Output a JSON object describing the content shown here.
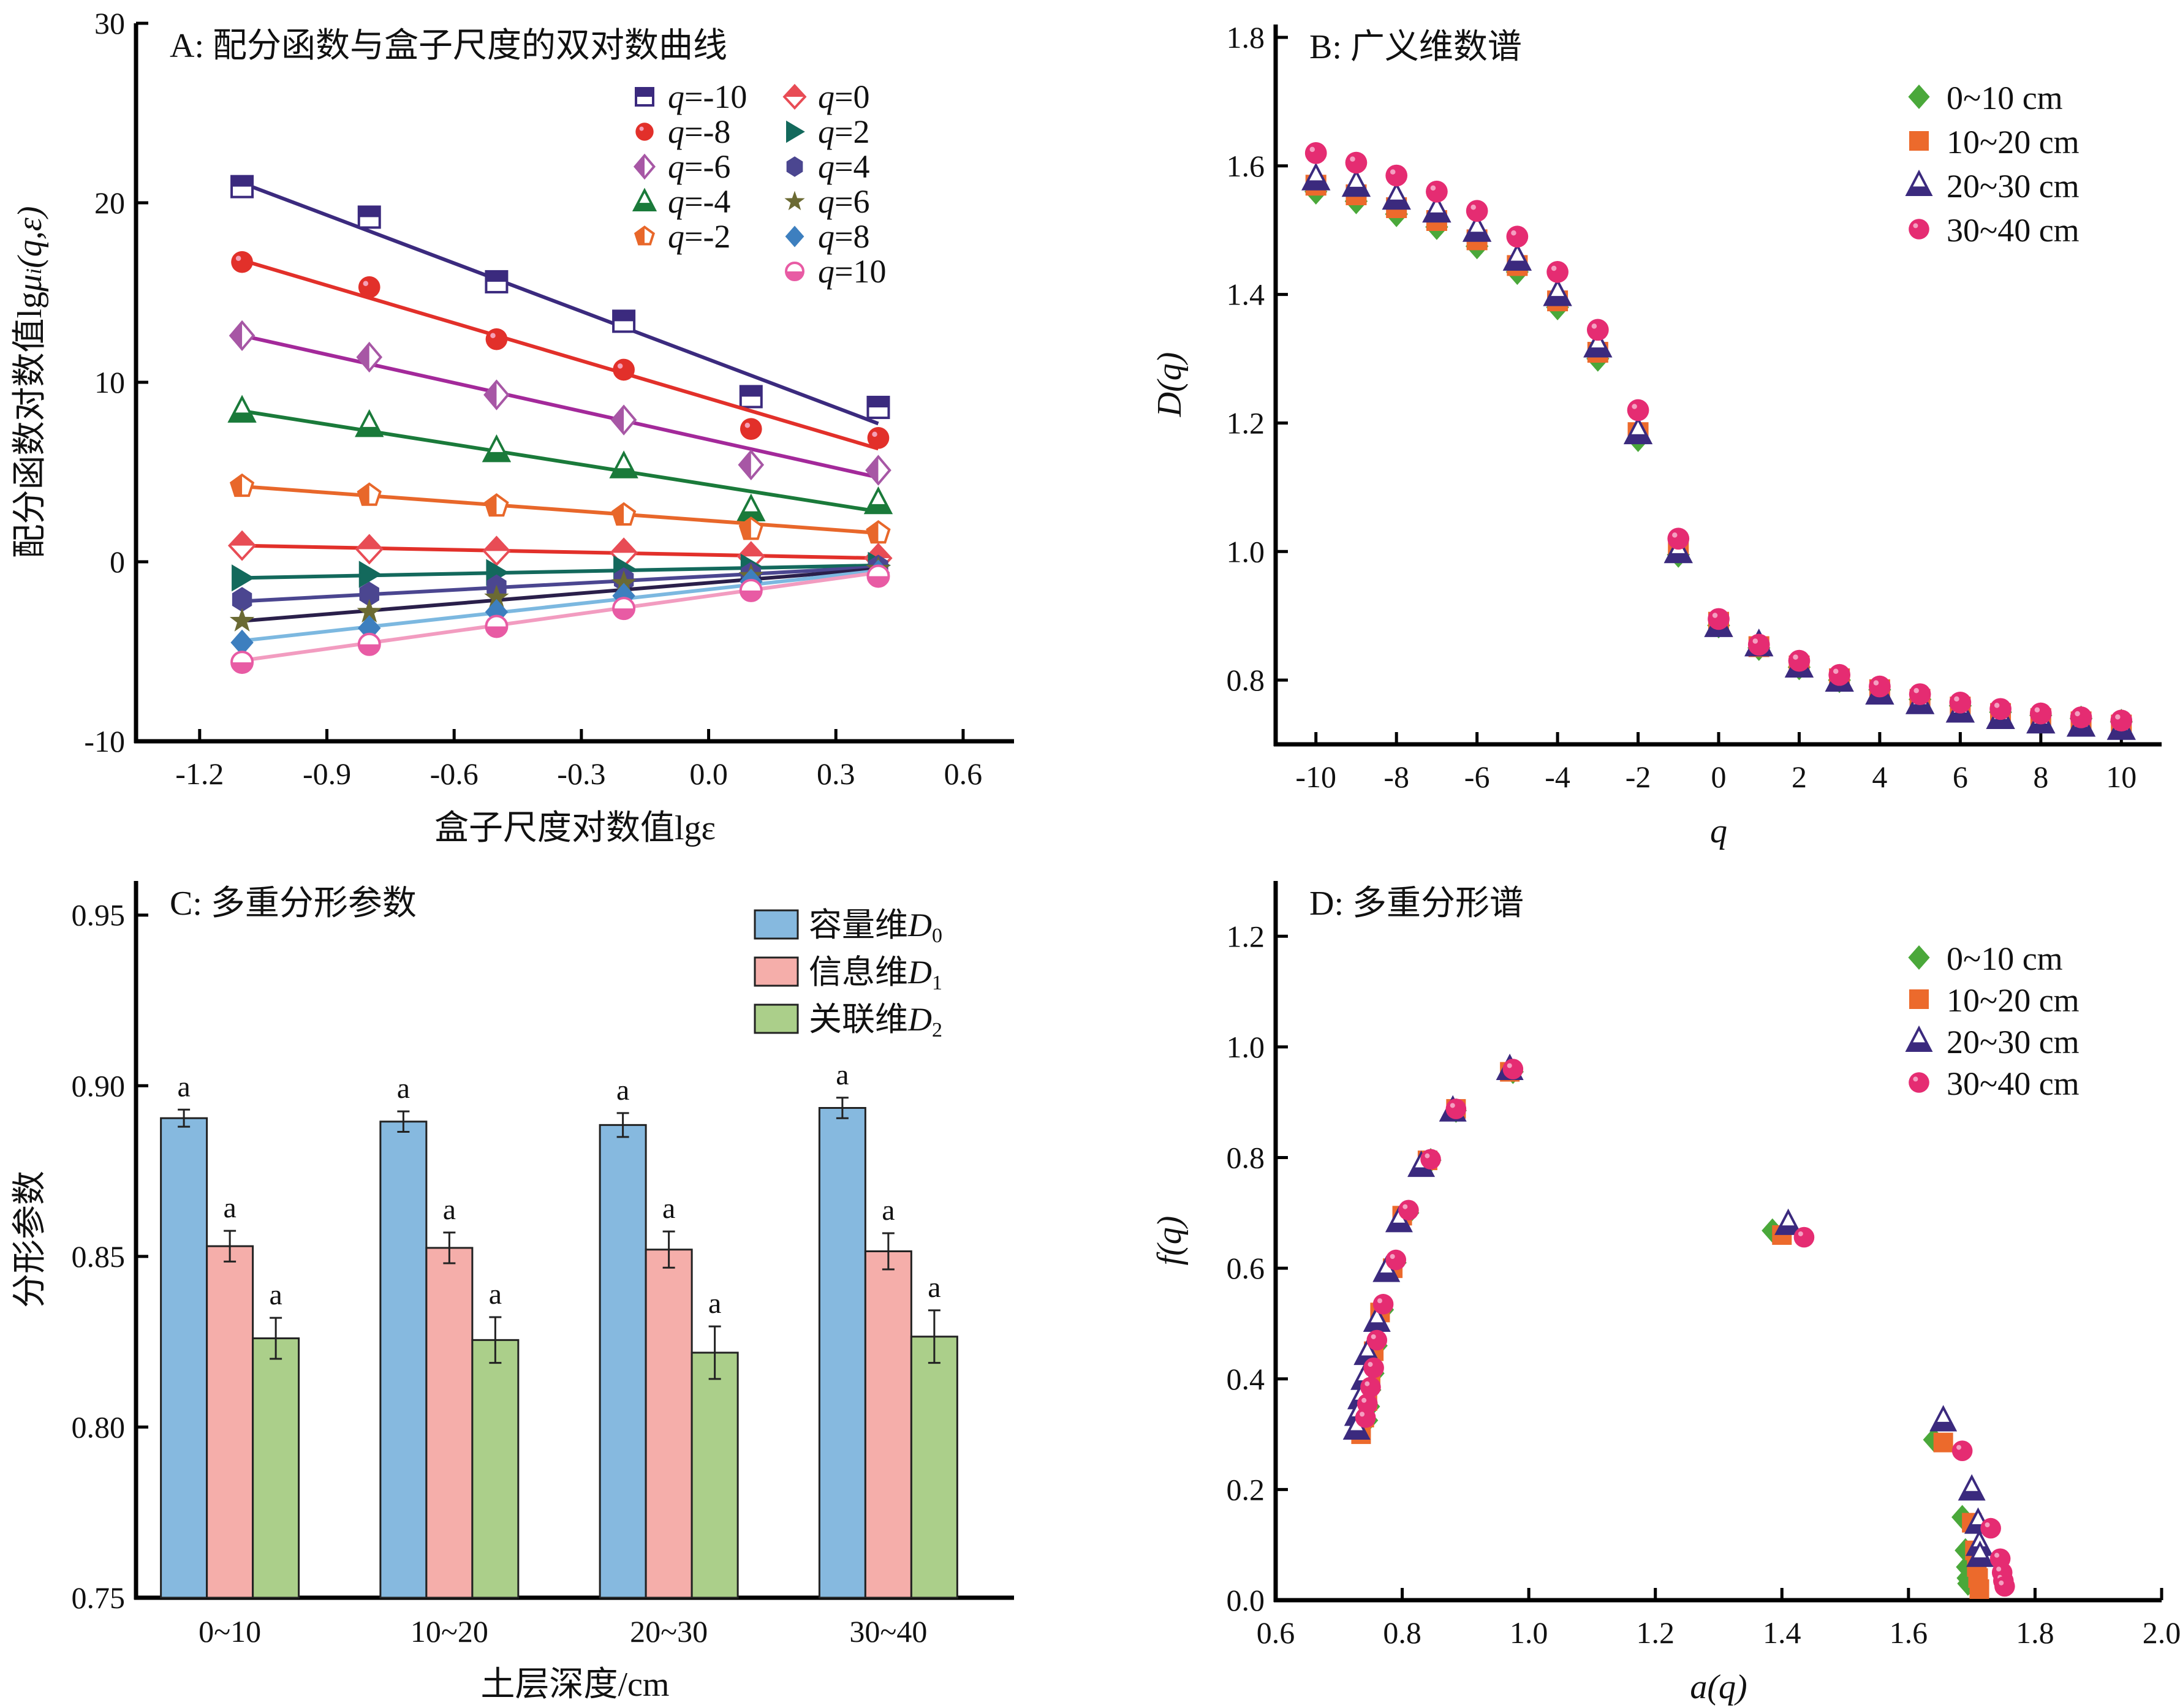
{
  "chart_data": [
    {
      "id": "A",
      "type": "scatter",
      "title": "A: 配分函数与盒子尺度的双对数曲线",
      "xlabel": "盒子尺度对数值lgε",
      "ylabel": "配分函数对数值lgμi(q,ε)",
      "xlim": [
        -1.35,
        0.72
      ],
      "ylim": [
        -10,
        30
      ],
      "xticks": [
        -1.2,
        -0.9,
        -0.6,
        -0.3,
        0.0,
        0.3,
        0.6
      ],
      "xtick_labels": [
        "-1.2",
        "-0.9",
        "-0.6",
        "-0.3",
        "0.0",
        "0.3",
        "0.6"
      ],
      "yticks": [
        -10,
        0,
        10,
        20,
        30
      ],
      "ytick_labels": [
        "-10",
        "0",
        "10",
        "20",
        "30"
      ],
      "legend_position": "top-right",
      "x": [
        -1.1,
        -0.8,
        -0.5,
        -0.2,
        0.1,
        0.4
      ],
      "series": [
        {
          "name": "q=-10",
          "marker": "square-half",
          "color": "#3b2a7e",
          "values": [
            20.9,
            19.2,
            15.6,
            13.4,
            9.2,
            8.6
          ],
          "fit": [
            21.1,
            7.7
          ]
        },
        {
          "name": "q=-8",
          "marker": "circle",
          "color": "#e2302a",
          "values": [
            16.7,
            15.3,
            12.4,
            10.7,
            7.4,
            6.9
          ],
          "fit": [
            16.8,
            6.3
          ]
        },
        {
          "name": "q=-6",
          "marker": "diamond-half",
          "color": "#a757a5",
          "values": [
            12.6,
            11.4,
            9.3,
            7.9,
            5.4,
            5.1
          ],
          "fit": [
            12.6,
            4.7
          ]
        },
        {
          "name": "q=-4",
          "marker": "triangle-half",
          "color": "#1a7a3a",
          "values": [
            8.4,
            7.6,
            6.2,
            5.3,
            2.9,
            3.3
          ],
          "fit": [
            8.4,
            2.8
          ]
        },
        {
          "name": "q=-2",
          "marker": "pentagon-half",
          "color": "#e8672a",
          "values": [
            4.2,
            3.7,
            3.1,
            2.6,
            1.8,
            1.6
          ],
          "fit": [
            4.2,
            1.6
          ]
        },
        {
          "name": "q=0",
          "marker": "diamond-top",
          "color": "#e84c55",
          "values": [
            0.9,
            0.7,
            0.6,
            0.5,
            0.3,
            0.2
          ],
          "fit": [
            0.9,
            0.2
          ]
        },
        {
          "name": "q=2",
          "marker": "triangle-right",
          "color": "#13695c",
          "values": [
            -0.9,
            -0.7,
            -0.6,
            -0.4,
            -0.3,
            -0.2
          ],
          "fit": [
            -0.9,
            -0.2
          ]
        },
        {
          "name": "q=4",
          "marker": "hexagon",
          "color": "#4b4690",
          "values": [
            -2.1,
            -1.8,
            -1.4,
            -1.0,
            -0.7,
            -0.3
          ],
          "fit": [
            -2.2,
            -0.3
          ]
        },
        {
          "name": "q=6",
          "marker": "star",
          "color": "#6b6a33",
          "values": [
            -3.3,
            -2.8,
            -2.0,
            -1.2,
            -0.8,
            -0.4
          ],
          "fit": [
            -3.3,
            -0.4
          ]
        },
        {
          "name": "q=8",
          "marker": "diamond",
          "color": "#3d7fbf",
          "values": [
            -4.5,
            -3.7,
            -2.8,
            -1.9,
            -1.1,
            -0.6
          ],
          "fit": [
            -4.4,
            -0.5
          ]
        },
        {
          "name": "q=10",
          "marker": "circle-half",
          "color": "#e85ba4",
          "values": [
            -5.6,
            -4.6,
            -3.6,
            -2.6,
            -1.6,
            -0.8
          ],
          "fit": [
            -5.5,
            -0.6
          ]
        }
      ],
      "fit_line_colors": [
        "#3b2a7e",
        "#e2302a",
        "#a3299a",
        "#1a7a3a",
        "#e8672a",
        "#e2302a",
        "#13695c",
        "#4b4690",
        "#2a1f4a",
        "#7cb8e0",
        "#f29cc0"
      ]
    },
    {
      "id": "B",
      "type": "scatter",
      "title": "B: 广义维数谱",
      "xlabel": "q",
      "ylabel": "D(q)",
      "xlim": [
        -11,
        11
      ],
      "ylim": [
        0.7,
        1.82
      ],
      "xticks": [
        -10,
        -8,
        -6,
        -4,
        -2,
        0,
        2,
        4,
        6,
        8,
        10
      ],
      "xtick_labels": [
        "-10",
        "-8",
        "-6",
        "-4",
        "-2",
        "0",
        "2",
        "4",
        "6",
        "8",
        "10"
      ],
      "yticks": [
        0.8,
        1.0,
        1.2,
        1.4,
        1.6,
        1.8
      ],
      "ytick_labels": [
        "0.8",
        "1.0",
        "1.2",
        "1.4",
        "1.6",
        "1.8"
      ],
      "legend_position": "top-right",
      "x": [
        -10,
        -9,
        -8,
        -7,
        -6,
        -5,
        -4,
        -3,
        -2,
        -1,
        0,
        1,
        2,
        3,
        4,
        5,
        6,
        7,
        8,
        9,
        10
      ],
      "series": [
        {
          "name": "0~10 cm",
          "marker": "diamond",
          "color": "#4aa83a",
          "values": [
            1.56,
            1.545,
            1.525,
            1.505,
            1.475,
            1.435,
            1.38,
            1.3,
            1.175,
            0.995,
            0.885,
            0.85,
            0.82,
            0.8,
            0.785,
            0.77,
            0.76,
            0.75,
            0.745,
            0.74,
            0.735
          ]
        },
        {
          "name": "10~20 cm",
          "marker": "square",
          "color": "#ec6a2c",
          "values": [
            1.57,
            1.555,
            1.535,
            1.515,
            1.485,
            1.445,
            1.39,
            1.31,
            1.185,
            1.005,
            0.89,
            0.852,
            0.822,
            0.802,
            0.785,
            0.77,
            0.758,
            0.748,
            0.74,
            0.735,
            0.73
          ]
        },
        {
          "name": "20~30 cm",
          "marker": "triangle-half",
          "color": "#3b2a7e",
          "values": [
            1.58,
            1.57,
            1.55,
            1.53,
            1.5,
            1.455,
            1.4,
            1.32,
            1.185,
            1.0,
            0.885,
            0.855,
            0.822,
            0.8,
            0.78,
            0.765,
            0.752,
            0.742,
            0.735,
            0.73,
            0.725
          ]
        },
        {
          "name": "30~40 cm",
          "marker": "ball",
          "color": "#e52c72",
          "values": [
            1.62,
            1.605,
            1.585,
            1.56,
            1.53,
            1.49,
            1.435,
            1.345,
            1.22,
            1.02,
            0.895,
            0.855,
            0.83,
            0.808,
            0.79,
            0.778,
            0.765,
            0.755,
            0.748,
            0.742,
            0.737
          ]
        }
      ]
    },
    {
      "id": "C",
      "type": "bar",
      "title": "C: 多重分形参数",
      "xlabel": "土层深度/cm",
      "ylabel": "分形参数",
      "categories": [
        "0~10",
        "10~20",
        "20~30",
        "30~40"
      ],
      "ylim": [
        0.75,
        0.96
      ],
      "yticks": [
        0.75,
        0.8,
        0.85,
        0.9,
        0.95
      ],
      "ytick_labels": [
        "0.75",
        "0.80",
        "0.85",
        "0.90",
        "0.95"
      ],
      "legend_position": "top-right",
      "series": [
        {
          "name": "容量维",
          "sub": "D",
          "idx": "0",
          "color": "#86b9df",
          "values": [
            0.8905,
            0.8895,
            0.8885,
            0.8935
          ],
          "errors": [
            0.0025,
            0.003,
            0.0035,
            0.003
          ],
          "labels": [
            "a",
            "a",
            "a",
            "a"
          ]
        },
        {
          "name": "信息维",
          "sub": "D",
          "idx": "1",
          "color": "#f5aeaa",
          "values": [
            0.853,
            0.8525,
            0.852,
            0.8515
          ],
          "errors": [
            0.0045,
            0.0045,
            0.0053,
            0.0053
          ],
          "labels": [
            "a",
            "a",
            "a",
            "a"
          ]
        },
        {
          "name": "关联维",
          "sub": "D",
          "idx": "2",
          "color": "#abcf8a",
          "values": [
            0.826,
            0.8255,
            0.8218,
            0.8265
          ],
          "errors": [
            0.006,
            0.0067,
            0.0077,
            0.0077
          ],
          "labels": [
            "a",
            "a",
            "a",
            "a"
          ]
        }
      ]
    },
    {
      "id": "D",
      "type": "scatter",
      "title": "D: 多重分形谱",
      "xlabel": "a(q)",
      "ylabel": "f(q)",
      "xlim": [
        0.6,
        2.0
      ],
      "ylim": [
        0.0,
        1.3
      ],
      "xticks": [
        0.6,
        0.8,
        1.0,
        1.2,
        1.4,
        1.6,
        1.8,
        2.0
      ],
      "xtick_labels": [
        "0.6",
        "0.8",
        "1.0",
        "1.2",
        "1.4",
        "1.6",
        "1.8",
        "2.0"
      ],
      "yticks": [
        0.0,
        0.2,
        0.4,
        0.6,
        0.8,
        1.0,
        1.2
      ],
      "ytick_labels": [
        "0.0",
        "0.2",
        "0.4",
        "0.6",
        "0.8",
        "1.0",
        "1.2"
      ],
      "legend_position": "top-right",
      "series": [
        {
          "name": "0~10 cm",
          "marker": "diamond",
          "color": "#4aa83a",
          "points": [
            [
              0.975,
              0.955
            ],
            [
              0.885,
              0.885
            ],
            [
              0.845,
              0.795
            ],
            [
              0.81,
              0.7
            ],
            [
              0.79,
              0.61
            ],
            [
              0.77,
              0.525
            ],
            [
              0.76,
              0.46
            ],
            [
              0.755,
              0.41
            ],
            [
              0.75,
              0.38
            ],
            [
              0.748,
              0.35
            ],
            [
              0.745,
              0.325
            ],
            [
              1.385,
              0.668
            ],
            [
              1.64,
              0.29
            ],
            [
              1.685,
              0.15
            ],
            [
              1.69,
              0.09
            ],
            [
              1.692,
              0.06
            ],
            [
              1.693,
              0.04
            ],
            [
              1.694,
              0.03
            ]
          ]
        },
        {
          "name": "10~20 cm",
          "marker": "square",
          "color": "#ec6a2c",
          "points": [
            [
              0.97,
              0.955
            ],
            [
              0.885,
              0.888
            ],
            [
              0.84,
              0.795
            ],
            [
              0.8,
              0.695
            ],
            [
              0.785,
              0.6
            ],
            [
              0.765,
              0.52
            ],
            [
              0.755,
              0.45
            ],
            [
              0.75,
              0.4
            ],
            [
              0.745,
              0.36
            ],
            [
              0.74,
              0.33
            ],
            [
              0.735,
              0.3
            ],
            [
              1.4,
              0.66
            ],
            [
              1.655,
              0.285
            ],
            [
              1.7,
              0.14
            ],
            [
              1.705,
              0.09
            ],
            [
              1.708,
              0.06
            ],
            [
              1.71,
              0.04
            ],
            [
              1.712,
              0.02
            ]
          ]
        },
        {
          "name": "20~30 cm",
          "marker": "triangle-half",
          "color": "#3b2a7e",
          "points": [
            [
              0.97,
              0.96
            ],
            [
              0.88,
              0.885
            ],
            [
              0.83,
              0.785
            ],
            [
              0.795,
              0.685
            ],
            [
              0.775,
              0.595
            ],
            [
              0.76,
              0.505
            ],
            [
              0.745,
              0.445
            ],
            [
              0.74,
              0.4
            ],
            [
              0.735,
              0.365
            ],
            [
              0.73,
              0.335
            ],
            [
              0.728,
              0.31
            ],
            [
              1.41,
              0.68
            ],
            [
              1.655,
              0.325
            ],
            [
              1.7,
              0.2
            ],
            [
              1.71,
              0.14
            ],
            [
              1.712,
              0.1
            ],
            [
              1.713,
              0.08
            ]
          ]
        },
        {
          "name": "30~40 cm",
          "marker": "ball",
          "color": "#e52c72",
          "points": [
            [
              0.975,
              0.96
            ],
            [
              0.885,
              0.888
            ],
            [
              0.845,
              0.797
            ],
            [
              0.81,
              0.705
            ],
            [
              0.79,
              0.615
            ],
            [
              0.77,
              0.535
            ],
            [
              0.76,
              0.47
            ],
            [
              0.755,
              0.42
            ],
            [
              0.75,
              0.385
            ],
            [
              0.745,
              0.355
            ],
            [
              0.742,
              0.33
            ],
            [
              1.435,
              0.656
            ],
            [
              1.685,
              0.27
            ],
            [
              1.73,
              0.13
            ],
            [
              1.745,
              0.075
            ],
            [
              1.748,
              0.05
            ],
            [
              1.75,
              0.035
            ],
            [
              1.752,
              0.025
            ]
          ]
        }
      ]
    }
  ]
}
